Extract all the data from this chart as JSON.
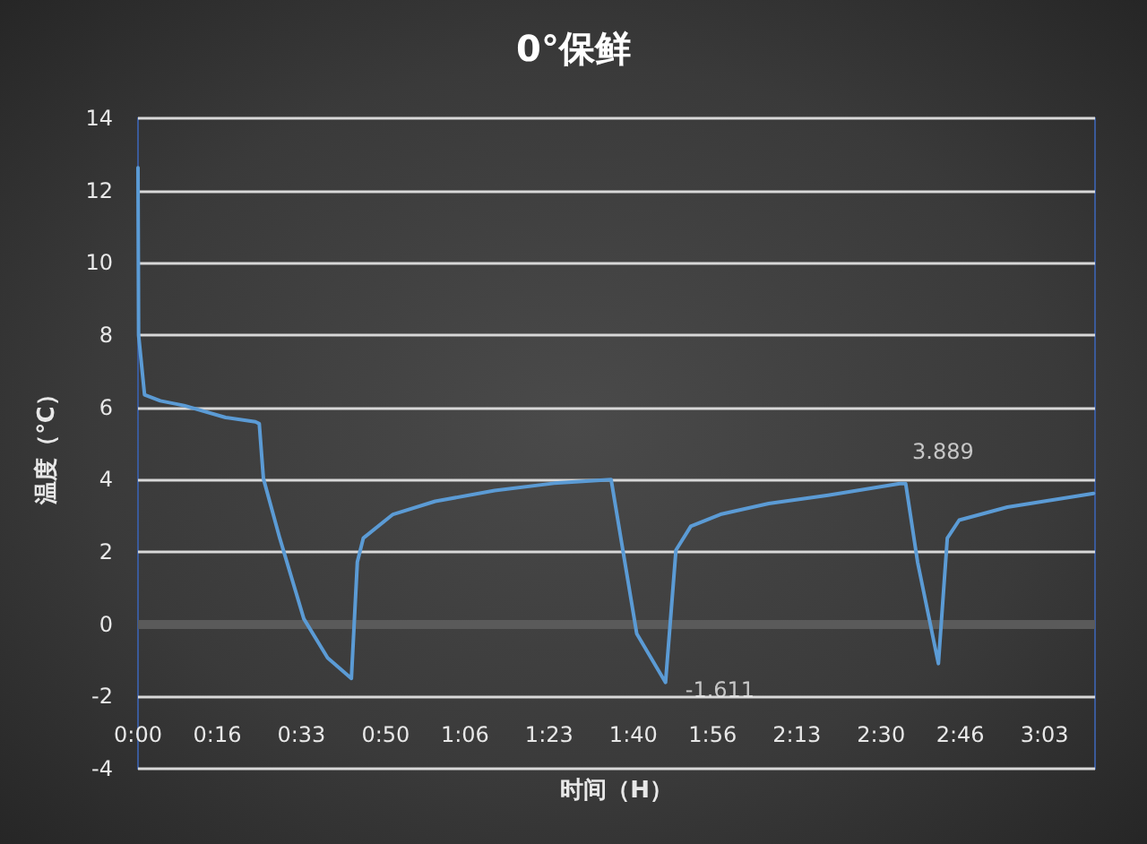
{
  "chart_data": {
    "type": "line",
    "title": "0°保鲜",
    "xlabel": "时间（H）",
    "ylabel": "温度（℃）",
    "series": [
      {
        "color": "#5b9bd5",
        "x": [
          0,
          0.002,
          0.022,
          0.075,
          0.155,
          0.295,
          0.395,
          0.408,
          0.422,
          0.477,
          0.558,
          0.638,
          0.718,
          0.738,
          0.758,
          0.858,
          1.0,
          1.2,
          1.4,
          1.592,
          1.618,
          1.678,
          1.775,
          1.81,
          1.86,
          1.96,
          2.122,
          2.322,
          2.563,
          2.583,
          2.623,
          2.693,
          2.723,
          2.763,
          2.925,
          3.215
        ],
        "values": [
          12.63,
          8.0,
          6.35,
          6.18,
          6.05,
          5.72,
          5.6,
          5.55,
          4.03,
          2.38,
          0.15,
          -0.93,
          -1.5,
          1.72,
          2.38,
          3.04,
          3.4,
          3.7,
          3.9,
          4.0,
          2.71,
          -0.26,
          -1.611,
          2.05,
          2.71,
          3.04,
          3.34,
          3.57,
          3.889,
          3.889,
          1.72,
          -1.09,
          2.38,
          2.88,
          3.24,
          3.62
        ]
      }
    ],
    "xlim": [
      0,
      3.22
    ],
    "ylim": [
      -4,
      14
    ],
    "xticks": [
      {
        "value": 0,
        "label": "0:00"
      },
      {
        "value": 0.2667,
        "label": "0:16"
      },
      {
        "value": 0.55,
        "label": "0:33"
      },
      {
        "value": 0.8333,
        "label": "0:50"
      },
      {
        "value": 1.1,
        "label": "1:06"
      },
      {
        "value": 1.3833,
        "label": "1:23"
      },
      {
        "value": 1.6667,
        "label": "1:40"
      },
      {
        "value": 1.9333,
        "label": "1:56"
      },
      {
        "value": 2.2167,
        "label": "2:13"
      },
      {
        "value": 2.5,
        "label": "2:30"
      },
      {
        "value": 2.7667,
        "label": "2:46"
      },
      {
        "value": 3.05,
        "label": "3:03"
      }
    ],
    "yticks": [
      -4,
      -2,
      0,
      2,
      4,
      6,
      8,
      10,
      12,
      14
    ],
    "grid": "y",
    "marker": "none",
    "line_style": "solid",
    "ref_lines": [
      {
        "axis": "y",
        "value": 0,
        "color": "#5a5a5a"
      }
    ],
    "annotations": [
      {
        "text": "3.889",
        "x": 2.563,
        "y": 3.889
      },
      {
        "text": "-1.611",
        "x": 1.775,
        "y": -1.611
      }
    ]
  }
}
